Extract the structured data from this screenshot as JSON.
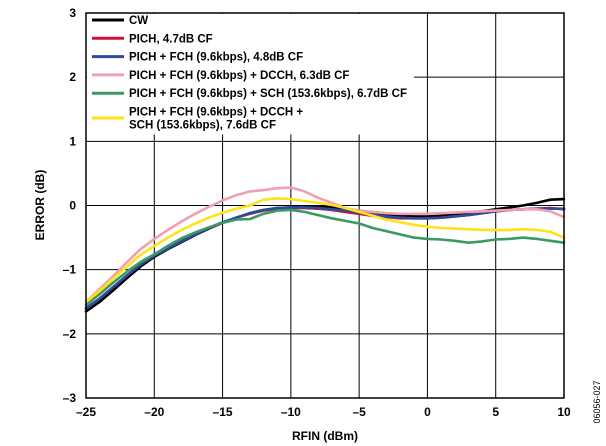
{
  "chart_data": {
    "type": "line",
    "title": "",
    "xlabel": "RFIN (dBm)",
    "ylabel": "ERROR (dB)",
    "xlim": [
      -25,
      10
    ],
    "ylim": [
      -3,
      3
    ],
    "x_ticks": [
      "–25",
      "–20",
      "–15",
      "–10",
      "–5",
      "0",
      "5",
      "10"
    ],
    "y_ticks": [
      "3",
      "2",
      "1",
      "0",
      "–1",
      "–2",
      "–3"
    ],
    "grid": true,
    "legend_position": "top-left",
    "figure_id": "06056-027",
    "series": [
      {
        "name": "CW",
        "color": "#000000",
        "x": [
          -25,
          -24,
          -23,
          -22,
          -21,
          -20,
          -19,
          -18,
          -17,
          -16,
          -15,
          -14,
          -13,
          -12,
          -11,
          -10,
          -9,
          -8,
          -7,
          -6,
          -5,
          -4,
          -3,
          -2,
          -1,
          0,
          1,
          2,
          3,
          4,
          5,
          6,
          7,
          8,
          9,
          10
        ],
        "y": [
          -1.65,
          -1.5,
          -1.32,
          -1.13,
          -0.95,
          -0.8,
          -0.68,
          -0.57,
          -0.46,
          -0.36,
          -0.27,
          -0.19,
          -0.12,
          -0.07,
          -0.04,
          -0.03,
          -0.02,
          -0.02,
          -0.03,
          -0.05,
          -0.08,
          -0.11,
          -0.14,
          -0.16,
          -0.17,
          -0.17,
          -0.16,
          -0.14,
          -0.12,
          -0.09,
          -0.06,
          -0.03,
          0.0,
          0.04,
          0.09,
          0.1
        ]
      },
      {
        "name": "PICH, 4.7dB CF",
        "color": "#d0103a",
        "x": [
          -25,
          -24,
          -23,
          -22,
          -21,
          -20,
          -19,
          -18,
          -17,
          -16,
          -15,
          -14,
          -13,
          -12,
          -11,
          -10,
          -9,
          -8,
          -7,
          -6,
          -5,
          -4,
          -3,
          -2,
          -1,
          0,
          1,
          2,
          3,
          4,
          5,
          6,
          7,
          8,
          9,
          10
        ],
        "y": [
          -1.6,
          -1.45,
          -1.27,
          -1.09,
          -0.92,
          -0.78,
          -0.66,
          -0.55,
          -0.45,
          -0.35,
          -0.27,
          -0.19,
          -0.13,
          -0.08,
          -0.05,
          -0.04,
          -0.04,
          -0.05,
          -0.07,
          -0.1,
          -0.13,
          -0.16,
          -0.18,
          -0.2,
          -0.2,
          -0.2,
          -0.19,
          -0.17,
          -0.15,
          -0.12,
          -0.09,
          -0.07,
          -0.06,
          -0.05,
          -0.04,
          -0.06
        ]
      },
      {
        "name": "PICH + FCH (9.6kbps), 4.8dB CF",
        "color": "#2e4a9a",
        "x": [
          -25,
          -24,
          -23,
          -22,
          -21,
          -20,
          -19,
          -18,
          -17,
          -16,
          -15,
          -14,
          -13,
          -12,
          -11,
          -10,
          -9,
          -8,
          -7,
          -6,
          -5,
          -4,
          -3,
          -2,
          -1,
          0,
          1,
          2,
          3,
          4,
          5,
          6,
          7,
          8,
          9,
          10
        ],
        "y": [
          -1.6,
          -1.45,
          -1.27,
          -1.09,
          -0.92,
          -0.78,
          -0.67,
          -0.56,
          -0.45,
          -0.35,
          -0.26,
          -0.19,
          -0.12,
          -0.07,
          -0.04,
          -0.03,
          -0.03,
          -0.04,
          -0.06,
          -0.08,
          -0.11,
          -0.14,
          -0.17,
          -0.19,
          -0.2,
          -0.2,
          -0.19,
          -0.17,
          -0.15,
          -0.12,
          -0.09,
          -0.07,
          -0.06,
          -0.05,
          -0.05,
          -0.05
        ]
      },
      {
        "name": "PICH + FCH (9.6kbps) + DCCH, 6.3dB CF",
        "color": "#f0a0b0",
        "x": [
          -25,
          -24,
          -23,
          -22,
          -21,
          -20,
          -19,
          -18,
          -17,
          -16,
          -15,
          -14,
          -13,
          -12,
          -11,
          -10,
          -9,
          -8,
          -7,
          -6,
          -5,
          -4,
          -3,
          -2,
          -1,
          0,
          1,
          2,
          3,
          4,
          5,
          6,
          7,
          8,
          9,
          10
        ],
        "y": [
          -1.5,
          -1.3,
          -1.1,
          -0.88,
          -0.68,
          -0.52,
          -0.38,
          -0.25,
          -0.13,
          -0.02,
          0.08,
          0.16,
          0.22,
          0.24,
          0.27,
          0.28,
          0.22,
          0.12,
          0.04,
          -0.04,
          -0.08,
          -0.1,
          -0.12,
          -0.13,
          -0.13,
          -0.13,
          -0.12,
          -0.11,
          -0.1,
          -0.09,
          -0.08,
          -0.07,
          -0.06,
          -0.06,
          -0.09,
          -0.18
        ]
      },
      {
        "name": "PICH + FCH (9.6kbps) + SCH (153.6kbps), 6.7dB CF",
        "color": "#3a9a64",
        "x": [
          -25,
          -24,
          -23,
          -22,
          -21,
          -20,
          -19,
          -18,
          -17,
          -16,
          -15,
          -14,
          -13,
          -12,
          -11,
          -10,
          -9,
          -8,
          -7,
          -6,
          -5,
          -4,
          -3,
          -2,
          -1,
          0,
          1,
          2,
          3,
          4,
          5,
          6,
          7,
          8,
          9,
          10
        ],
        "y": [
          -1.55,
          -1.38,
          -1.2,
          -1.03,
          -0.88,
          -0.76,
          -0.63,
          -0.51,
          -0.42,
          -0.34,
          -0.27,
          -0.22,
          -0.21,
          -0.13,
          -0.08,
          -0.07,
          -0.1,
          -0.15,
          -0.2,
          -0.24,
          -0.28,
          -0.35,
          -0.4,
          -0.45,
          -0.5,
          -0.52,
          -0.53,
          -0.55,
          -0.58,
          -0.56,
          -0.53,
          -0.52,
          -0.5,
          -0.52,
          -0.55,
          -0.58
        ]
      },
      {
        "name": "PICH + FCH (9.6kbps) + DCCH + SCH (153.6kbps), 7.6dB CF",
        "color": "#ffe21a",
        "x": [
          -25,
          -24,
          -23,
          -22,
          -21,
          -20,
          -19,
          -18,
          -17,
          -16,
          -15,
          -14,
          -13,
          -12,
          -11,
          -10,
          -9,
          -8,
          -7,
          -6,
          -5,
          -4,
          -3,
          -2,
          -1,
          0,
          1,
          2,
          3,
          4,
          5,
          6,
          7,
          8,
          9,
          10
        ],
        "y": [
          -1.5,
          -1.33,
          -1.14,
          -0.95,
          -0.77,
          -0.63,
          -0.5,
          -0.38,
          -0.28,
          -0.19,
          -0.11,
          -0.05,
          0.0,
          0.09,
          0.11,
          0.1,
          0.07,
          0.04,
          0.01,
          -0.04,
          -0.1,
          -0.16,
          -0.22,
          -0.26,
          -0.3,
          -0.33,
          -0.35,
          -0.36,
          -0.37,
          -0.38,
          -0.38,
          -0.38,
          -0.37,
          -0.38,
          -0.41,
          -0.5
        ]
      }
    ],
    "legend_lines": [
      [
        "CW"
      ],
      [
        "PICH, 4.7dB CF"
      ],
      [
        "PICH + FCH (9.6kbps), 4.8dB CF"
      ],
      [
        "PICH + FCH (9.6kbps) + DCCH, 6.3dB CF"
      ],
      [
        "PICH + FCH (9.6kbps) + SCH (153.6kbps), 6.7dB CF"
      ],
      [
        "PICH + FCH (9.6kbps) + DCCH +",
        "SCH (153.6kbps), 7.6dB CF"
      ]
    ]
  }
}
